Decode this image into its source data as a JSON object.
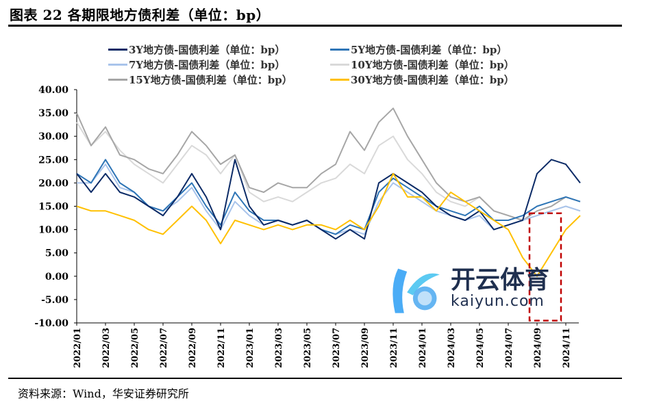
{
  "title": "图表 22 各期限地方债利差（单位：bp）",
  "source": "资料来源：Wind，华安证券研究所",
  "watermark": {
    "cn": "开云体育",
    "en": "kaiyun.com"
  },
  "chart_data": {
    "type": "line",
    "title": "",
    "xlabel": "",
    "ylabel": "",
    "ylim": [
      -10,
      40
    ],
    "yticks": [
      "40.00",
      "35.00",
      "30.00",
      "25.00",
      "20.00",
      "15.00",
      "10.00",
      "5.00",
      "0.00",
      "-5.00",
      "-10.00"
    ],
    "xticks": [
      "2022/01",
      "2022/03",
      "2022/05",
      "2022/07",
      "2022/09",
      "2022/11",
      "2023/01",
      "2023/03",
      "2023/05",
      "2023/07",
      "2023/09",
      "2023/11",
      "2024/01",
      "2024/03",
      "2024/05",
      "2024/07",
      "2024/09",
      "2024/11"
    ],
    "x": [
      "2022/01",
      "2022/02",
      "2022/03",
      "2022/04",
      "2022/05",
      "2022/06",
      "2022/07",
      "2022/08",
      "2022/09",
      "2022/10",
      "2022/11",
      "2022/12",
      "2023/01",
      "2023/02",
      "2023/03",
      "2023/04",
      "2023/05",
      "2023/06",
      "2023/07",
      "2023/08",
      "2023/09",
      "2023/10",
      "2023/11",
      "2023/12",
      "2024/01",
      "2024/02",
      "2024/03",
      "2024/04",
      "2024/05",
      "2024/06",
      "2024/07",
      "2024/08",
      "2024/09",
      "2024/10",
      "2024/11",
      "2024/12"
    ],
    "grid": false,
    "legend": "top",
    "annotation": {
      "type": "dashed-box",
      "color": "#c00000",
      "x_range": [
        "2024/08",
        "2024/10"
      ],
      "y_range": [
        -9.5,
        13.5
      ]
    },
    "series": [
      {
        "name": "3Y地方债-国债利差（单位：bp）",
        "color": "#0b2a66",
        "values": [
          22,
          18,
          22,
          18,
          17,
          15,
          13,
          17,
          22,
          17,
          10,
          25,
          15,
          11,
          12,
          11,
          12,
          10,
          8,
          10,
          8,
          20,
          22,
          20,
          18,
          15,
          13,
          12,
          14,
          10,
          11,
          12,
          22,
          25,
          24,
          20
        ]
      },
      {
        "name": "5Y地方债-国债利差（单位：bp）",
        "color": "#2e75b6",
        "values": [
          22,
          20,
          25,
          20,
          18,
          15,
          14,
          17,
          20,
          15,
          11,
          18,
          14,
          12,
          12,
          11,
          12,
          10,
          9,
          11,
          10,
          18,
          21,
          19,
          17,
          15,
          14,
          13,
          15,
          12,
          12,
          13,
          15,
          16,
          17,
          16
        ]
      },
      {
        "name": "7Y地方债-国债利差（单位：bp）",
        "color": "#a9c4eb",
        "values": [
          20,
          20,
          24,
          19,
          18,
          15,
          14,
          16,
          19,
          14,
          10,
          16,
          13,
          11,
          12,
          11,
          12,
          10,
          9,
          10,
          9,
          16,
          20,
          18,
          16,
          14,
          13,
          12,
          13,
          10,
          11,
          12,
          13,
          14,
          15,
          14
        ]
      },
      {
        "name": "10Y地方债-国债利差（单位：bp）",
        "color": "#d9d9d9",
        "values": [
          33,
          28,
          31,
          27,
          24,
          22,
          20,
          24,
          28,
          26,
          22,
          26,
          18,
          16,
          17,
          16,
          18,
          20,
          21,
          24,
          22,
          28,
          30,
          25,
          22,
          18,
          16,
          15,
          17,
          14,
          13,
          12,
          13,
          14,
          15,
          14
        ]
      },
      {
        "name": "15Y地方债-国债利差（单位：bp）",
        "color": "#a6a6a6",
        "values": [
          35,
          28,
          32,
          26,
          25,
          23,
          22,
          26,
          31,
          28,
          24,
          26,
          19,
          18,
          20,
          19,
          19,
          22,
          24,
          31,
          27,
          33,
          36,
          30,
          25,
          20,
          17,
          16,
          17,
          14,
          13,
          12,
          14,
          15,
          17,
          16
        ]
      },
      {
        "name": "30Y地方债-国债利差（单位：bp）",
        "color": "#ffc000",
        "values": [
          15,
          14,
          14,
          13,
          12,
          10,
          9,
          12,
          15,
          12,
          7,
          12,
          11,
          10,
          11,
          10,
          11,
          11,
          10,
          12,
          10,
          15,
          22,
          17,
          17,
          14,
          18,
          16,
          14,
          12,
          10,
          4,
          0,
          5,
          10,
          13
        ]
      }
    ]
  }
}
